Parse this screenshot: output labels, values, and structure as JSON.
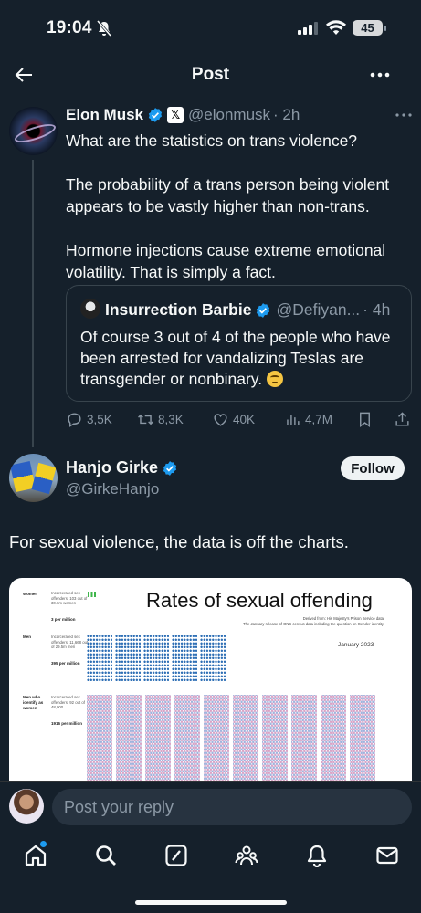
{
  "status_bar": {
    "time": "19:04",
    "battery": "45"
  },
  "header": {
    "title": "Post"
  },
  "main_tweet": {
    "name": "Elon Musk",
    "handle": "@elonmusk",
    "time": "· 2h",
    "text": "What are the statistics on trans violence?\n\nThe probability of a trans person being violent appears to be vastly higher than non-trans.\n\nHormone injections cause extreme emotional volatility. That is simply a fact.",
    "quote": {
      "name": "Insurrection Barbie",
      "handle": "@Defiyan...",
      "time": "· 4h",
      "text": "Of course 3 out of 4 of the people who have been arrested for vandalizing Teslas are transgender or nonbinary. "
    },
    "stats": {
      "replies": "3,5K",
      "reposts": "8,3K",
      "likes": "40K",
      "views": "4,7M"
    }
  },
  "reply": {
    "name": "Hanjo Girke",
    "handle": "@GirkeHanjo",
    "follow_label": "Follow",
    "text": "For sexual violence, the data is off the charts.",
    "card": {
      "title": "Rates of sexual offending",
      "rows": [
        {
          "label": "Women",
          "desc": "Incarcerated sex offenders: 103 out of 30.6m women",
          "stat": "3 per million"
        },
        {
          "label": "Men",
          "desc": "Incarcerated sex offenders: 11,668 out of 29.5m men",
          "stat": "395 per million"
        },
        {
          "label": "Men who identify as women",
          "desc": "Incarcerated sex offenders: 92 out of 48,000",
          "stat": "1916 per million"
        }
      ],
      "source_line1": "Derived from: His Majesty's Prison Service data",
      "source_line2": "The January release of ONS census data including the question on Gender identity",
      "date": "January 2023"
    }
  },
  "composer": {
    "placeholder": "Post your reply"
  },
  "colors": {
    "background": "#15202b",
    "accent": "#1d9bf0",
    "muted": "#8b98a5",
    "border": "#38444d"
  }
}
